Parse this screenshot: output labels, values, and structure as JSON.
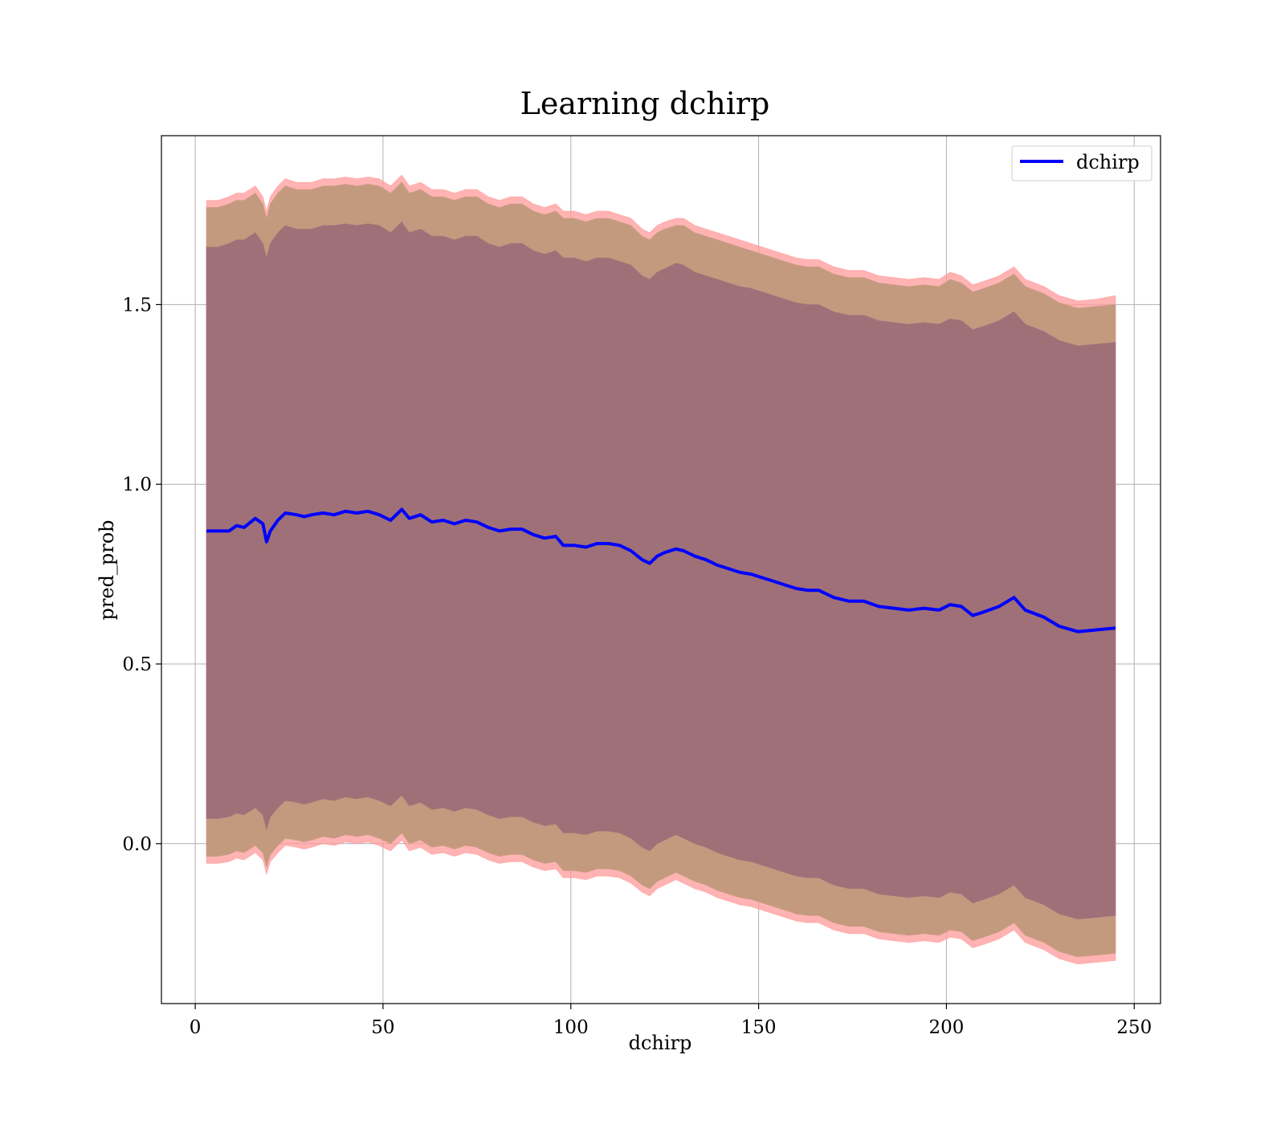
{
  "chart_data": {
    "type": "line",
    "title": "Learning dchirp",
    "xlabel": "dchirp",
    "ylabel": "pred_prob",
    "xlim": [
      -9,
      257
    ],
    "ylim": [
      -0.445,
      1.97
    ],
    "xticks": [
      0,
      50,
      100,
      150,
      200,
      250
    ],
    "yticks": [
      0.0,
      0.5,
      1.0,
      1.5
    ],
    "ytick_labels": [
      "0.0",
      "0.5",
      "1.0",
      "1.5"
    ],
    "grid": true,
    "legend": {
      "placement": "top-right",
      "entries": [
        "dchirp"
      ]
    },
    "colors": {
      "line": "#0000ff",
      "outer_band": "#ff9999",
      "middle_band": "#c49a7f",
      "inner_band": "#a07079"
    },
    "series": [
      {
        "name": "dchirp",
        "x": [
          3,
          6,
          9,
          11,
          13,
          16,
          18,
          19,
          20,
          22,
          24,
          27,
          29,
          31,
          34,
          37,
          40,
          43,
          46,
          49,
          52,
          55,
          57,
          60,
          63,
          66,
          69,
          72,
          75,
          78,
          81,
          84,
          87,
          90,
          93,
          96,
          98,
          101,
          104,
          107,
          110,
          113,
          116,
          119,
          121,
          123,
          125,
          128,
          130,
          133,
          136,
          139,
          142,
          145,
          148,
          151,
          154,
          157,
          160,
          163,
          166,
          170,
          174,
          178,
          182,
          186,
          190,
          194,
          198,
          201,
          204,
          207,
          210,
          214,
          218,
          221,
          226,
          230,
          235,
          240,
          245
        ],
        "y": [
          0.87,
          0.87,
          0.87,
          0.885,
          0.88,
          0.905,
          0.89,
          0.84,
          0.87,
          0.9,
          0.92,
          0.915,
          0.91,
          0.915,
          0.92,
          0.915,
          0.925,
          0.92,
          0.925,
          0.915,
          0.9,
          0.93,
          0.905,
          0.915,
          0.895,
          0.9,
          0.89,
          0.9,
          0.895,
          0.88,
          0.87,
          0.875,
          0.875,
          0.86,
          0.85,
          0.855,
          0.83,
          0.83,
          0.825,
          0.835,
          0.835,
          0.83,
          0.815,
          0.79,
          0.78,
          0.8,
          0.81,
          0.82,
          0.815,
          0.8,
          0.79,
          0.775,
          0.765,
          0.755,
          0.75,
          0.74,
          0.73,
          0.72,
          0.71,
          0.705,
          0.705,
          0.685,
          0.675,
          0.675,
          0.66,
          0.655,
          0.65,
          0.655,
          0.65,
          0.665,
          0.66,
          0.635,
          0.645,
          0.66,
          0.685,
          0.65,
          0.63,
          0.605,
          0.59,
          0.595,
          0.6
        ],
        "outer_upper": [
          1.79,
          1.79,
          1.8,
          1.81,
          1.81,
          1.83,
          1.8,
          1.76,
          1.8,
          1.83,
          1.85,
          1.84,
          1.84,
          1.84,
          1.85,
          1.85,
          1.855,
          1.85,
          1.855,
          1.85,
          1.83,
          1.86,
          1.83,
          1.84,
          1.82,
          1.82,
          1.81,
          1.82,
          1.82,
          1.8,
          1.79,
          1.8,
          1.8,
          1.78,
          1.77,
          1.78,
          1.76,
          1.76,
          1.75,
          1.76,
          1.76,
          1.75,
          1.74,
          1.71,
          1.7,
          1.72,
          1.73,
          1.74,
          1.74,
          1.72,
          1.71,
          1.7,
          1.69,
          1.68,
          1.67,
          1.66,
          1.65,
          1.64,
          1.63,
          1.625,
          1.625,
          1.605,
          1.595,
          1.595,
          1.58,
          1.575,
          1.57,
          1.575,
          1.57,
          1.59,
          1.58,
          1.555,
          1.565,
          1.58,
          1.605,
          1.57,
          1.55,
          1.525,
          1.51,
          1.515,
          1.525
        ],
        "middle_upper": [
          1.77,
          1.77,
          1.78,
          1.79,
          1.79,
          1.81,
          1.78,
          1.74,
          1.78,
          1.81,
          1.83,
          1.82,
          1.82,
          1.82,
          1.83,
          1.83,
          1.835,
          1.83,
          1.835,
          1.83,
          1.81,
          1.84,
          1.81,
          1.82,
          1.8,
          1.8,
          1.79,
          1.8,
          1.8,
          1.78,
          1.77,
          1.78,
          1.78,
          1.76,
          1.75,
          1.76,
          1.74,
          1.74,
          1.73,
          1.74,
          1.74,
          1.73,
          1.72,
          1.69,
          1.68,
          1.7,
          1.71,
          1.72,
          1.72,
          1.7,
          1.69,
          1.68,
          1.67,
          1.66,
          1.65,
          1.64,
          1.63,
          1.62,
          1.61,
          1.605,
          1.605,
          1.585,
          1.575,
          1.575,
          1.56,
          1.555,
          1.55,
          1.555,
          1.55,
          1.57,
          1.56,
          1.535,
          1.545,
          1.56,
          1.585,
          1.55,
          1.53,
          1.505,
          1.49,
          1.495,
          1.5
        ],
        "inner_upper": [
          1.66,
          1.66,
          1.67,
          1.68,
          1.68,
          1.7,
          1.67,
          1.63,
          1.67,
          1.7,
          1.72,
          1.71,
          1.71,
          1.71,
          1.72,
          1.72,
          1.725,
          1.72,
          1.725,
          1.72,
          1.7,
          1.73,
          1.7,
          1.71,
          1.69,
          1.69,
          1.68,
          1.69,
          1.69,
          1.67,
          1.66,
          1.67,
          1.67,
          1.65,
          1.64,
          1.65,
          1.63,
          1.63,
          1.62,
          1.63,
          1.63,
          1.62,
          1.61,
          1.58,
          1.57,
          1.59,
          1.6,
          1.615,
          1.61,
          1.59,
          1.58,
          1.57,
          1.56,
          1.55,
          1.545,
          1.535,
          1.525,
          1.515,
          1.505,
          1.5,
          1.5,
          1.48,
          1.47,
          1.47,
          1.455,
          1.45,
          1.445,
          1.45,
          1.445,
          1.46,
          1.455,
          1.43,
          1.44,
          1.455,
          1.48,
          1.445,
          1.425,
          1.4,
          1.385,
          1.39,
          1.395
        ],
        "inner_lower": [
          0.07,
          0.07,
          0.075,
          0.085,
          0.08,
          0.1,
          0.08,
          0.04,
          0.075,
          0.1,
          0.12,
          0.115,
          0.11,
          0.115,
          0.125,
          0.12,
          0.13,
          0.125,
          0.13,
          0.12,
          0.105,
          0.135,
          0.105,
          0.115,
          0.095,
          0.1,
          0.09,
          0.1,
          0.095,
          0.08,
          0.07,
          0.075,
          0.075,
          0.06,
          0.05,
          0.055,
          0.03,
          0.03,
          0.025,
          0.035,
          0.035,
          0.03,
          0.015,
          -0.01,
          -0.02,
          0.0,
          0.01,
          0.025,
          0.015,
          0.0,
          -0.01,
          -0.025,
          -0.035,
          -0.045,
          -0.05,
          -0.06,
          -0.07,
          -0.08,
          -0.09,
          -0.095,
          -0.095,
          -0.115,
          -0.125,
          -0.125,
          -0.14,
          -0.145,
          -0.15,
          -0.145,
          -0.15,
          -0.135,
          -0.14,
          -0.165,
          -0.155,
          -0.14,
          -0.115,
          -0.15,
          -0.17,
          -0.195,
          -0.21,
          -0.205,
          -0.2
        ],
        "middle_lower": [
          -0.035,
          -0.035,
          -0.03,
          -0.02,
          -0.025,
          -0.005,
          -0.025,
          -0.065,
          -0.03,
          -0.005,
          0.015,
          0.01,
          0.005,
          0.01,
          0.02,
          0.015,
          0.025,
          0.02,
          0.025,
          0.015,
          0.0,
          0.03,
          0.0,
          0.01,
          -0.01,
          -0.005,
          -0.015,
          -0.005,
          -0.01,
          -0.025,
          -0.035,
          -0.03,
          -0.03,
          -0.045,
          -0.055,
          -0.05,
          -0.075,
          -0.075,
          -0.08,
          -0.07,
          -0.07,
          -0.075,
          -0.09,
          -0.115,
          -0.125,
          -0.105,
          -0.095,
          -0.08,
          -0.09,
          -0.105,
          -0.115,
          -0.13,
          -0.14,
          -0.15,
          -0.155,
          -0.165,
          -0.175,
          -0.185,
          -0.195,
          -0.2,
          -0.2,
          -0.22,
          -0.23,
          -0.23,
          -0.245,
          -0.25,
          -0.255,
          -0.25,
          -0.255,
          -0.24,
          -0.245,
          -0.27,
          -0.26,
          -0.245,
          -0.22,
          -0.255,
          -0.275,
          -0.3,
          -0.315,
          -0.31,
          -0.305
        ],
        "outer_lower": [
          -0.055,
          -0.055,
          -0.05,
          -0.04,
          -0.045,
          -0.025,
          -0.045,
          -0.085,
          -0.05,
          -0.025,
          -0.005,
          -0.01,
          -0.015,
          -0.01,
          0.0,
          -0.005,
          0.005,
          0.0,
          0.005,
          -0.005,
          -0.02,
          0.01,
          -0.02,
          -0.01,
          -0.03,
          -0.025,
          -0.035,
          -0.025,
          -0.03,
          -0.045,
          -0.055,
          -0.05,
          -0.05,
          -0.065,
          -0.075,
          -0.07,
          -0.095,
          -0.095,
          -0.1,
          -0.09,
          -0.09,
          -0.095,
          -0.11,
          -0.135,
          -0.145,
          -0.125,
          -0.115,
          -0.1,
          -0.11,
          -0.125,
          -0.135,
          -0.15,
          -0.16,
          -0.17,
          -0.175,
          -0.185,
          -0.195,
          -0.205,
          -0.215,
          -0.22,
          -0.22,
          -0.24,
          -0.25,
          -0.25,
          -0.265,
          -0.27,
          -0.275,
          -0.27,
          -0.275,
          -0.26,
          -0.265,
          -0.29,
          -0.28,
          -0.265,
          -0.24,
          -0.275,
          -0.295,
          -0.32,
          -0.335,
          -0.33,
          -0.325
        ]
      }
    ]
  }
}
